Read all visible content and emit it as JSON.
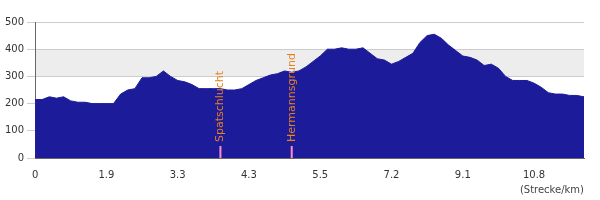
{
  "chart_data": {
    "type": "area",
    "x_label": "(Strecke/km)",
    "categories": [
      "0",
      null,
      null,
      null,
      null,
      null,
      null,
      null,
      null,
      null,
      "1.9",
      null,
      null,
      null,
      null,
      null,
      null,
      null,
      null,
      null,
      "3.3",
      null,
      null,
      null,
      null,
      null,
      null,
      null,
      null,
      null,
      "4.3",
      null,
      null,
      null,
      null,
      null,
      null,
      null,
      null,
      null,
      "5.5",
      null,
      null,
      null,
      null,
      null,
      null,
      null,
      null,
      null,
      "7.2",
      null,
      null,
      null,
      null,
      null,
      null,
      null,
      null,
      null,
      "9.1",
      null,
      null,
      null,
      null,
      null,
      null,
      null,
      null,
      null,
      "10.8",
      null,
      null,
      null,
      null,
      null,
      null,
      null
    ],
    "values": [
      215,
      215,
      225,
      220,
      225,
      210,
      205,
      205,
      200,
      200,
      200,
      200,
      235,
      250,
      255,
      295,
      295,
      300,
      320,
      300,
      285,
      280,
      270,
      255,
      255,
      255,
      255,
      250,
      250,
      255,
      270,
      285,
      295,
      305,
      310,
      320,
      315,
      320,
      335,
      355,
      375,
      400,
      400,
      405,
      400,
      400,
      405,
      385,
      365,
      360,
      345,
      355,
      370,
      385,
      425,
      450,
      455,
      440,
      415,
      395,
      375,
      370,
      360,
      340,
      345,
      330,
      300,
      285,
      285,
      285,
      275,
      260,
      240,
      235,
      235,
      230,
      230,
      225
    ],
    "color": "#1c1c9a",
    "annotations": [
      {
        "text": "Spatschlucht",
        "category_index": 26
      },
      {
        "text": "Hermannsgrund",
        "category_index": 36
      }
    ],
    "ylim": [
      0,
      500
    ],
    "yticks": [
      0,
      100,
      200,
      300,
      400,
      500
    ],
    "grid": true
  }
}
